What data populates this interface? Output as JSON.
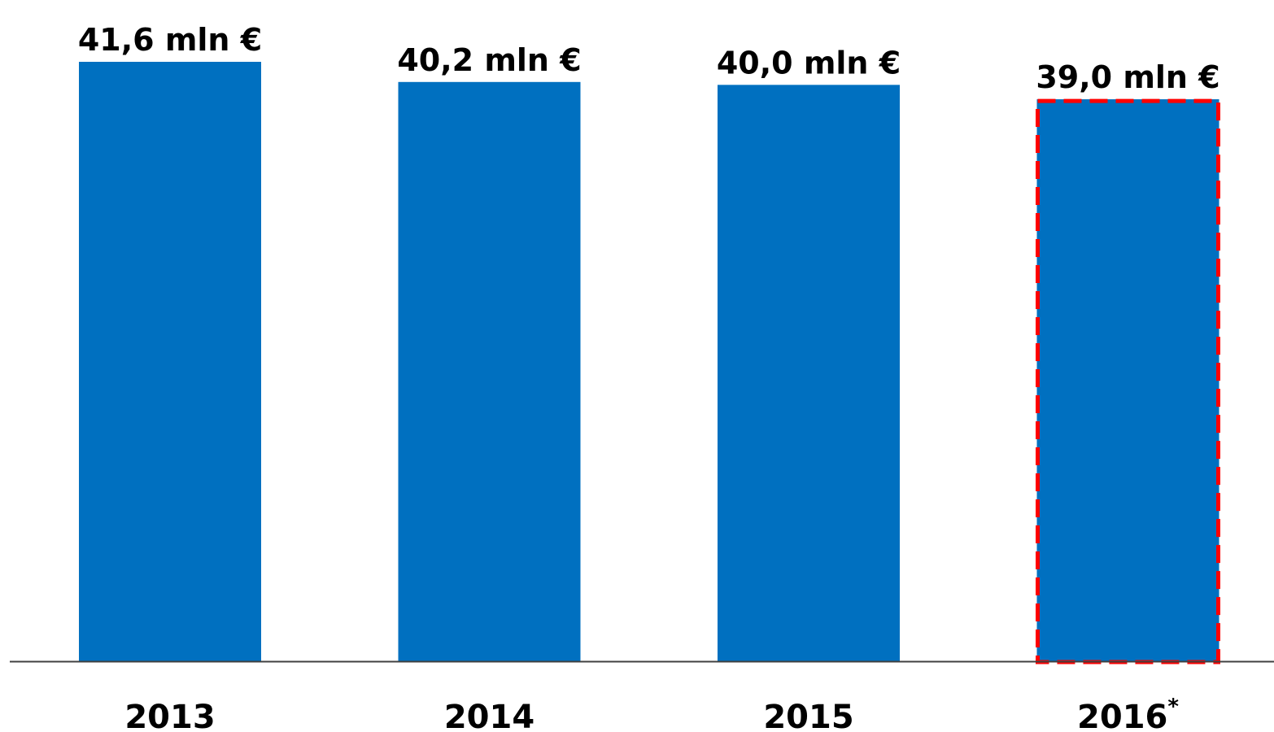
{
  "chart_data": {
    "type": "bar",
    "categories": [
      "2013",
      "2014",
      "2015",
      "2016"
    ],
    "category_marks": [
      "",
      "",
      "",
      "*"
    ],
    "values": [
      41.6,
      40.2,
      40.0,
      39.0
    ],
    "value_labels": [
      "41,6 mln €",
      "40,2 mln €",
      "40,0 mln €",
      "39,0 mln €"
    ],
    "highlighted": [
      false,
      false,
      false,
      true
    ],
    "ylim": [
      0,
      41.6
    ],
    "grid": false,
    "legend": "none",
    "title": "",
    "xlabel": "",
    "ylabel": ""
  },
  "colors": {
    "bar": "#0070C0",
    "highlight_outline": "#FF0000",
    "axis": "#404040",
    "text": "#000000"
  }
}
